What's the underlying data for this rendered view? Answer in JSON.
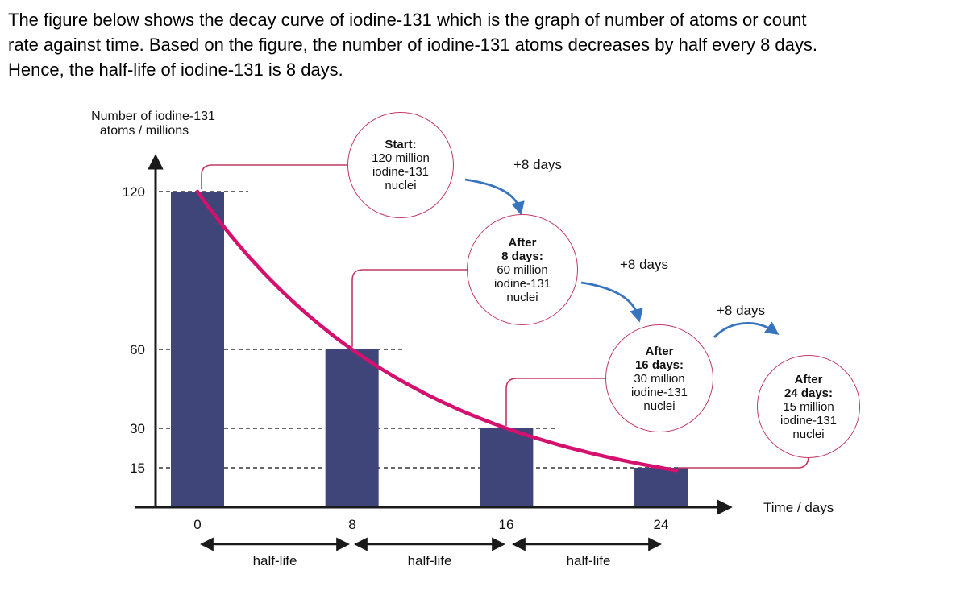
{
  "intro_lines": [
    "The figure below shows the decay curve of iodine-131 which is the graph of number of atoms or count",
    "rate against time. Based on the figure, the number of iodine-131 atoms decreases by half every 8 days.",
    "Hence, the half-life of iodine-131 is 8 days."
  ],
  "chart_data": {
    "type": "bar",
    "title": "",
    "xlabel": "Time / days",
    "ylabel": "Number of iodine-131 atoms / millions",
    "ylabel_lines": [
      "Number of iodine-131",
      "atoms / millions"
    ],
    "categories": [
      0,
      8,
      16,
      24
    ],
    "values": [
      120,
      60,
      30,
      15
    ],
    "y_ticks": [
      120,
      60,
      30,
      15
    ],
    "ylim": [
      0,
      140
    ],
    "half_life_days": 8,
    "grid": "dashed horizontal guide at each bar height",
    "legend": "none",
    "curve_note": "exponential decay curve through bar tops",
    "bar_color": "#3f4479",
    "curve_color": "#d4116e",
    "arrow_color": "#3873bd",
    "callout_border_color": "#c13a63",
    "interval_label": "+8 days",
    "half_life_label": "half-life",
    "callouts": [
      {
        "bold": [
          "Start:"
        ],
        "lines": [
          "120 million",
          "iodine-131",
          "nuclei"
        ]
      },
      {
        "bold": [
          "After",
          "8 days:"
        ],
        "lines": [
          "60 million",
          "iodine-131",
          "nuclei"
        ]
      },
      {
        "bold": [
          "After",
          "16 days:"
        ],
        "lines": [
          "30 million",
          "iodine-131",
          "nuclei"
        ]
      },
      {
        "bold": [
          "After",
          "24 days:"
        ],
        "lines": [
          "15 million",
          "iodine-131",
          "nuclei"
        ]
      }
    ]
  }
}
